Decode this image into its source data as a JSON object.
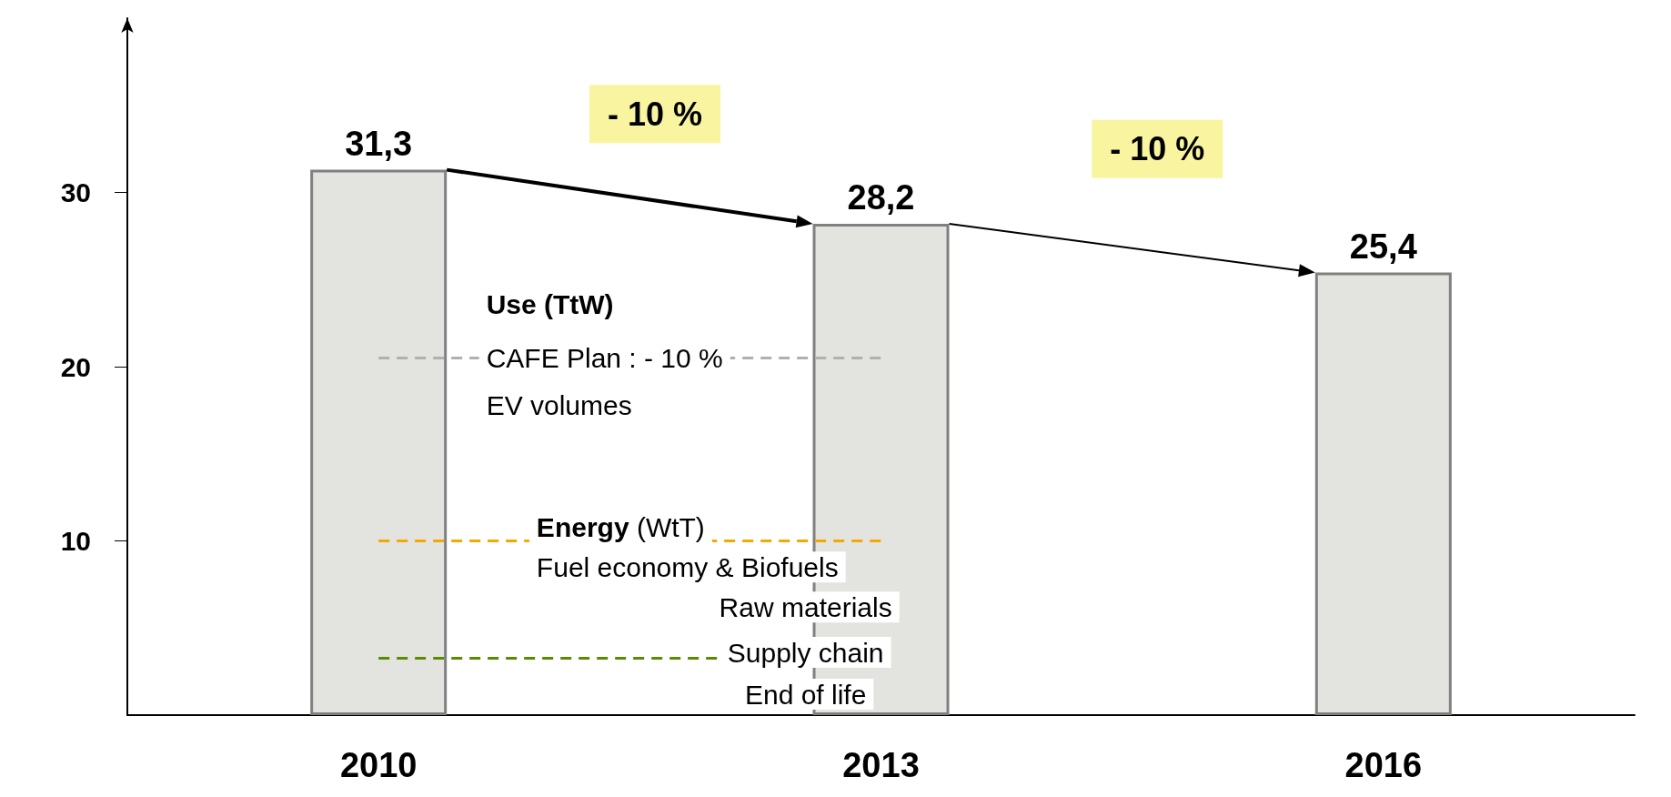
{
  "chart_data": {
    "type": "bar",
    "categories": [
      "2010",
      "2013",
      "2016"
    ],
    "values": [
      31.3,
      28.2,
      25.4
    ],
    "value_labels": [
      "31,3",
      "28,2",
      "25,4"
    ],
    "color": "#e3e3df",
    "ylim": [
      0,
      40
    ],
    "yticks": [
      10,
      20,
      30
    ],
    "grid": false,
    "ref_lines": [
      {
        "axis": "y",
        "value": 20.5,
        "color": "#b0b0b0",
        "line_style": "dashed"
      },
      {
        "axis": "y",
        "value": 10,
        "color": "#f5a800",
        "line_style": "dashed"
      },
      {
        "axis": "y",
        "value": 3.3,
        "color": "#5a8a00",
        "line_style": "dashed"
      }
    ],
    "annotations": [
      "- 10 %",
      "- 10 %",
      "Use (TtW)",
      "CAFE Plan : - 10 %",
      "EV volumes",
      "Energy",
      "(WtT)",
      "Fuel economy & Biofuels",
      "Raw materials",
      "Supply chain",
      "End of life"
    ]
  }
}
